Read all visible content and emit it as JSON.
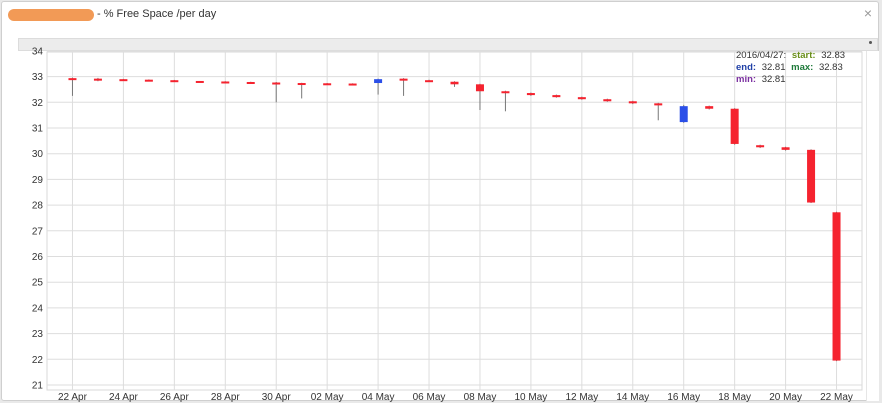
{
  "window": {
    "title": "- % Free Space /per day",
    "close_label": "×"
  },
  "chart_data": {
    "type": "candlestick",
    "title": "- % Free Space /per day",
    "ylim": [
      21,
      34
    ],
    "y_ticks": [
      21,
      22,
      23,
      24,
      25,
      26,
      27,
      28,
      29,
      30,
      31,
      32,
      33,
      34
    ],
    "x_range": [
      "2016-04-21",
      "2016-05-23"
    ],
    "x_tick_labels": [
      {
        "date": "2016-04-22",
        "label": "22 Apr"
      },
      {
        "date": "2016-04-24",
        "label": "24 Apr"
      },
      {
        "date": "2016-04-26",
        "label": "26 Apr"
      },
      {
        "date": "2016-04-28",
        "label": "28 Apr"
      },
      {
        "date": "2016-04-30",
        "label": "30 Apr"
      },
      {
        "date": "2016-05-02",
        "label": "02 May"
      },
      {
        "date": "2016-05-04",
        "label": "04 May"
      },
      {
        "date": "2016-05-06",
        "label": "06 May"
      },
      {
        "date": "2016-05-08",
        "label": "08 May"
      },
      {
        "date": "2016-05-10",
        "label": "10 May"
      },
      {
        "date": "2016-05-12",
        "label": "12 May"
      },
      {
        "date": "2016-05-14",
        "label": "14 May"
      },
      {
        "date": "2016-05-16",
        "label": "16 May"
      },
      {
        "date": "2016-05-18",
        "label": "18 May"
      },
      {
        "date": "2016-05-20",
        "label": "20 May"
      },
      {
        "date": "2016-05-22",
        "label": "22 May"
      }
    ],
    "grid": true,
    "up_color": "#2b4fe8",
    "down_color": "#f5232f",
    "wick_color": "#777777",
    "candles": [
      {
        "date": "2016-04-22",
        "start": 32.94,
        "end": 32.92,
        "min": 32.25,
        "max": 32.96
      },
      {
        "date": "2016-04-23",
        "start": 32.92,
        "end": 32.9,
        "min": 32.82,
        "max": 32.95
      },
      {
        "date": "2016-04-24",
        "start": 32.9,
        "end": 32.88,
        "min": 32.86,
        "max": 32.91
      },
      {
        "date": "2016-04-25",
        "start": 32.88,
        "end": 32.86,
        "min": 32.85,
        "max": 32.89
      },
      {
        "date": "2016-04-26",
        "start": 32.86,
        "end": 32.84,
        "min": 32.83,
        "max": 32.87
      },
      {
        "date": "2016-04-27",
        "start": 32.83,
        "end": 32.81,
        "min": 32.81,
        "max": 32.83
      },
      {
        "date": "2016-04-28",
        "start": 32.81,
        "end": 32.79,
        "min": 32.78,
        "max": 32.82
      },
      {
        "date": "2016-04-29",
        "start": 32.79,
        "end": 32.77,
        "min": 32.76,
        "max": 32.8
      },
      {
        "date": "2016-04-30",
        "start": 32.77,
        "end": 32.75,
        "min": 32.0,
        "max": 32.79
      },
      {
        "date": "2016-05-01",
        "start": 32.75,
        "end": 32.74,
        "min": 32.15,
        "max": 32.76
      },
      {
        "date": "2016-05-02",
        "start": 32.74,
        "end": 32.73,
        "min": 32.72,
        "max": 32.75
      },
      {
        "date": "2016-05-03",
        "start": 32.73,
        "end": 32.72,
        "min": 32.71,
        "max": 32.74
      },
      {
        "date": "2016-05-04",
        "start": 32.75,
        "end": 32.9,
        "min": 32.3,
        "max": 32.92
      },
      {
        "date": "2016-05-05",
        "start": 32.92,
        "end": 32.86,
        "min": 32.25,
        "max": 32.94
      },
      {
        "date": "2016-05-06",
        "start": 32.86,
        "end": 32.8,
        "min": 32.79,
        "max": 32.88
      },
      {
        "date": "2016-05-07",
        "start": 32.8,
        "end": 32.7,
        "min": 32.6,
        "max": 32.82
      },
      {
        "date": "2016-05-08",
        "start": 32.7,
        "end": 32.43,
        "min": 31.7,
        "max": 32.72
      },
      {
        "date": "2016-05-09",
        "start": 32.43,
        "end": 32.36,
        "min": 31.65,
        "max": 32.45
      },
      {
        "date": "2016-05-10",
        "start": 32.36,
        "end": 32.28,
        "min": 32.25,
        "max": 32.38
      },
      {
        "date": "2016-05-11",
        "start": 32.28,
        "end": 32.2,
        "min": 32.18,
        "max": 32.3
      },
      {
        "date": "2016-05-12",
        "start": 32.2,
        "end": 32.12,
        "min": 32.1,
        "max": 32.22
      },
      {
        "date": "2016-05-13",
        "start": 32.12,
        "end": 32.04,
        "min": 32.02,
        "max": 32.14
      },
      {
        "date": "2016-05-14",
        "start": 32.04,
        "end": 31.96,
        "min": 31.93,
        "max": 32.06
      },
      {
        "date": "2016-05-15",
        "start": 31.96,
        "end": 31.88,
        "min": 31.3,
        "max": 31.98
      },
      {
        "date": "2016-05-16",
        "start": 31.23,
        "end": 31.85,
        "min": 31.2,
        "max": 31.9
      },
      {
        "date": "2016-05-17",
        "start": 31.85,
        "end": 31.75,
        "min": 31.72,
        "max": 31.87
      },
      {
        "date": "2016-05-18",
        "start": 31.75,
        "end": 30.38,
        "min": 30.35,
        "max": 31.77
      },
      {
        "date": "2016-05-19",
        "start": 30.33,
        "end": 30.25,
        "min": 30.22,
        "max": 30.35
      },
      {
        "date": "2016-05-20",
        "start": 30.25,
        "end": 30.15,
        "min": 30.12,
        "max": 30.27
      },
      {
        "date": "2016-05-21",
        "start": 30.15,
        "end": 28.1,
        "min": 28.08,
        "max": 30.17
      },
      {
        "date": "2016-05-22",
        "start": 27.72,
        "end": 21.95,
        "min": 21.93,
        "max": 27.74
      }
    ],
    "tooltip": {
      "date": "2016/04/27:",
      "start_label": "start:",
      "start_value": "32.83",
      "end_label": "end:",
      "end_value": "32.81",
      "max_label": "max:",
      "max_value": "32.83",
      "min_label": "min:",
      "min_value": "32.81",
      "date_color": "#333333",
      "start_color": "#6a8f1a",
      "end_color": "#1f3fa6",
      "max_color": "#1e7a3a",
      "min_color": "#7b2fa0"
    }
  }
}
